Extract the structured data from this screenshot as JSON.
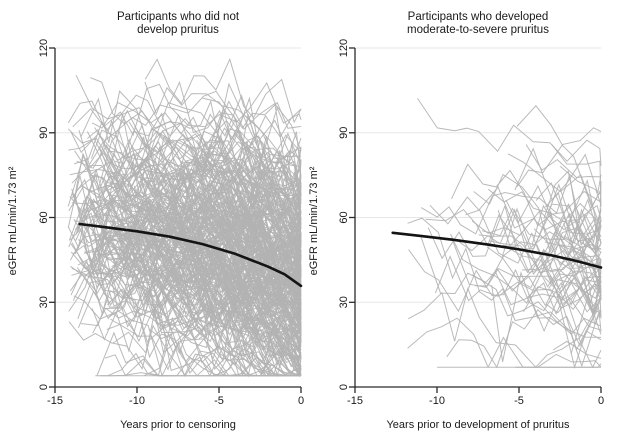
{
  "figure": {
    "background": "#ffffff",
    "colors": {
      "spaghetti": "#b3b3b3",
      "trend": "#141414",
      "grid": "#e7e7e7",
      "axis": "#2b2b2b",
      "text": "#1a1a1a"
    }
  },
  "chart_data": [
    {
      "type": "line",
      "panel": "left",
      "title": "Participants who did not develop pruritus",
      "title_lines": [
        "Participants who did not",
        "develop pruritus"
      ],
      "xlabel": "Years prior to censoring",
      "ylabel": "eGFR mL/min/1.73 m²",
      "xlim": [
        -15,
        0
      ],
      "ylim": [
        0,
        120
      ],
      "xticks": [
        -15,
        -10,
        -5,
        0
      ],
      "yticks": [
        0,
        30,
        60,
        90,
        120
      ],
      "grid": "horizontal",
      "legend": "none",
      "series": [
        {
          "name": "mean-egfr-trajectory",
          "role": "trend",
          "x": [
            -13.5,
            -12,
            -10,
            -8,
            -6,
            -4,
            -2,
            -1,
            0
          ],
          "y": [
            57.7,
            56.6,
            55.1,
            53.2,
            50.6,
            47.1,
            42.6,
            39.9,
            35.8
          ]
        },
        {
          "name": "individual-egfr-trajectories",
          "role": "background-spaghetti",
          "description": "Individual participant eGFR trajectories (thin gray lines), value range ~4-116, converging denser toward year 0",
          "n_lines": 320,
          "seed": 7,
          "start_range": [
            -14.2,
            -3.0
          ],
          "start_bias": 1.6,
          "level_sd": 19,
          "slope_sd": 1.15,
          "noise_sd": 6.5,
          "step_years": 0.85,
          "value_clip": [
            4,
            116
          ]
        }
      ]
    },
    {
      "type": "line",
      "panel": "right",
      "title": "Participants who developed moderate-to-severe pruritus",
      "title_lines": [
        "Participants who developed",
        "moderate-to-severe pruritus"
      ],
      "xlabel": "Years prior to development of pruritus",
      "ylabel": "eGFR mL/min/1.73 m²",
      "xlim": [
        -15,
        0
      ],
      "ylim": [
        0,
        120
      ],
      "xticks": [
        -15,
        -10,
        -5,
        0
      ],
      "yticks": [
        0,
        30,
        60,
        90,
        120
      ],
      "grid": "horizontal",
      "legend": "none",
      "series": [
        {
          "name": "mean-egfr-trajectory",
          "role": "trend",
          "x": [
            -12.7,
            -11,
            -9,
            -7,
            -5,
            -3,
            -1.5,
            0
          ],
          "y": [
            54.6,
            53.5,
            52.1,
            50.5,
            48.7,
            46.6,
            44.6,
            42.3
          ]
        },
        {
          "name": "individual-egfr-trajectories",
          "role": "background-spaghetti",
          "description": "Individual participant eGFR trajectories (thin gray lines), sparser than left panel, value range ~8-106",
          "n_lines": 74,
          "seed": 11,
          "start_range": [
            -13.3,
            -1.6
          ],
          "start_bias": 0.8,
          "level_sd": 17,
          "slope_sd": 1.0,
          "noise_sd": 6.0,
          "step_years": 0.95,
          "value_clip": [
            7,
            107
          ]
        }
      ]
    }
  ]
}
